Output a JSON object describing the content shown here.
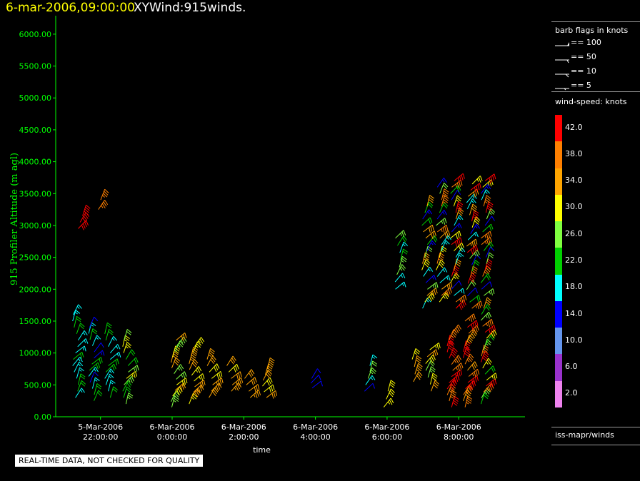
{
  "title": {
    "date": "6-mar-2006,09:00:00",
    "main": "XYWind:915winds."
  },
  "colors": {
    "axis": "#00ff00",
    "ylabel": "#00ff00",
    "text": "#ffffff"
  },
  "notice": "REAL-TIME DATA, NOT CHECKED FOR QUALITY",
  "legend": {
    "barb_title": "barb flags in knots",
    "barbs": [
      "== 100",
      "== 50",
      "== 10",
      "== 5"
    ],
    "speed_title": "wind-speed: knots",
    "scale": [
      {
        "label": "42.0",
        "color": "#ff0000"
      },
      {
        "label": "38.0",
        "color": "#ff7f00"
      },
      {
        "label": "34.0",
        "color": "#ffa500"
      },
      {
        "label": "30.0",
        "color": "#ffff00"
      },
      {
        "label": "26.0",
        "color": "#80ff40"
      },
      {
        "label": "22.0",
        "color": "#00d000"
      },
      {
        "label": "18.0",
        "color": "#00ffff"
      },
      {
        "label": "14.0",
        "color": "#0000ff"
      },
      {
        "label": "10.0",
        "color": "#6495ed"
      },
      {
        "label": "6.0",
        "color": "#9a32cd"
      },
      {
        "label": "2.0",
        "color": "#ee82ee"
      }
    ],
    "footer": "iss-mapr/winds"
  },
  "chart_data": {
    "type": "scatter",
    "title": "XYWind:915winds.",
    "xlabel": "time",
    "ylabel": "915 Profiler Altitude (m agl)",
    "ylim": [
      0,
      6200
    ],
    "yticks": [
      "0.00",
      "500.00",
      "1000.00",
      "1500.00",
      "2000.00",
      "2500.00",
      "3000.00",
      "3500.00",
      "4000.00",
      "4500.00",
      "5000.00",
      "5500.00",
      "6000.00"
    ],
    "x_hours_range": [
      20.75,
      33.85
    ],
    "xticks": [
      {
        "hour": 22,
        "line1": "5-Mar-2006",
        "line2": "22:00:00"
      },
      {
        "hour": 24,
        "line1": "6-Mar-2006",
        "line2": "0:00:00"
      },
      {
        "hour": 26,
        "line1": "6-Mar-2006",
        "line2": "2:00:00"
      },
      {
        "hour": 28,
        "line1": "6-Mar-2006",
        "line2": "4:00:00"
      },
      {
        "hour": 30,
        "line1": "6-Mar-2006",
        "line2": "6:00:00"
      },
      {
        "hour": 32,
        "line1": "6-Mar-2006",
        "line2": "8:00:00"
      }
    ],
    "profiles": [
      {
        "time": "5-Mar-2006 21:30",
        "hour": 21.3,
        "alt": [
          300,
          1600
        ],
        "speed": [
          16,
          22
        ],
        "count": 14
      },
      {
        "time": "5-Mar-2006 21:45",
        "hour": 21.75,
        "alt": [
          250,
          1400
        ],
        "speed": [
          14,
          22
        ],
        "count": 13
      },
      {
        "time": "5-Mar-2006 22:15",
        "hour": 22.2,
        "alt": [
          300,
          1300
        ],
        "speed": [
          17,
          24
        ],
        "count": 11
      },
      {
        "time": "5-Mar-2006 22:45",
        "hour": 22.7,
        "alt": [
          200,
          1200
        ],
        "speed": [
          22,
          29
        ],
        "count": 11
      },
      {
        "time": "6-Mar-2006 0:00",
        "hour": 24.05,
        "alt": [
          150,
          1200
        ],
        "speed": [
          26,
          34
        ],
        "count": 13
      },
      {
        "time": "6-Mar-2006 0:30",
        "hour": 24.55,
        "alt": [
          200,
          1100
        ],
        "speed": [
          28,
          36
        ],
        "count": 11
      },
      {
        "time": "6-Mar-2006 1:00",
        "hour": 25.05,
        "alt": [
          300,
          900
        ],
        "speed": [
          30,
          36
        ],
        "count": 7
      },
      {
        "time": "6-Mar-2006 1:30",
        "hour": 25.6,
        "alt": [
          400,
          800
        ],
        "speed": [
          31,
          36
        ],
        "count": 5
      },
      {
        "time": "6-Mar-2006 2:00",
        "hour": 26.1,
        "alt": [
          300,
          600
        ],
        "speed": [
          32,
          36
        ],
        "count": 4
      },
      {
        "time": "6-Mar-2006 2:30",
        "hour": 26.6,
        "alt": [
          300,
          750
        ],
        "speed": [
          31,
          36
        ],
        "count": 6
      },
      {
        "time": "6-Mar-2006 3:50",
        "hour": 27.95,
        "alt": [
          450,
          600
        ],
        "speed": [
          13,
          15
        ],
        "count": 3
      },
      {
        "time": "6-Mar-2006 5:20",
        "hour": 29.45,
        "alt": [
          400,
          800
        ],
        "speed": [
          14,
          26
        ],
        "count": 5
      },
      {
        "time": "6-Mar-2006 5:50",
        "hour": 29.95,
        "alt": [
          150,
          400
        ],
        "speed": [
          28,
          31
        ],
        "count": 3
      },
      {
        "time": "6-Mar-2006 6:40",
        "hour": 30.7,
        "alt": [
          550,
          900
        ],
        "speed": [
          28,
          36
        ],
        "count": 4
      },
      {
        "time": "6-Mar-2006 7:10",
        "hour": 31.15,
        "alt": [
          400,
          1050
        ],
        "speed": [
          24,
          34
        ],
        "count": 7
      },
      {
        "time": "6-Mar-2006 7:45",
        "hour": 31.75,
        "alt": [
          150,
          1300
        ],
        "speed": [
          38,
          44
        ],
        "count": 13
      },
      {
        "time": "6-Mar-2006 8:10",
        "hour": 32.2,
        "alt": [
          150,
          1500
        ],
        "speed": [
          34,
          42
        ],
        "count": 15
      },
      {
        "time": "6-Mar-2006 8:40",
        "hour": 32.7,
        "alt": [
          200,
          1700
        ],
        "speed": [
          21,
          42
        ],
        "count": 17
      },
      {
        "time": "6-Mar-2006 7:10u",
        "hour": 31.05,
        "alt": [
          1700,
          3300
        ],
        "speed": [
          15,
          36
        ],
        "count": 17
      },
      {
        "time": "6-Mar-2006 7:35u",
        "hour": 31.45,
        "alt": [
          1800,
          3600
        ],
        "speed": [
          15,
          40
        ],
        "count": 19
      },
      {
        "time": "6-Mar-2006 8:00u",
        "hour": 31.85,
        "alt": [
          1700,
          3700
        ],
        "speed": [
          14,
          42
        ],
        "count": 21
      },
      {
        "time": "6-Mar-2006 8:20u",
        "hour": 32.3,
        "alt": [
          1700,
          3650
        ],
        "speed": [
          14,
          42
        ],
        "count": 21
      },
      {
        "time": "6-Mar-2006 8:45u",
        "hour": 32.7,
        "alt": [
          1900,
          3700
        ],
        "speed": [
          14,
          42
        ],
        "count": 19
      },
      {
        "time": "6-Mar-2006 6:30u",
        "hour": 30.3,
        "alt": [
          2000,
          2800
        ],
        "speed": [
          18,
          28
        ],
        "count": 8
      },
      {
        "time": "5-Mar-2006 20:40",
        "hour": 21.45,
        "alt": [
          2950,
          3150
        ],
        "speed": [
          42,
          44
        ],
        "count": 3
      },
      {
        "time": "5-Mar-2006 21:50",
        "hour": 21.95,
        "alt": [
          3250,
          3400
        ],
        "speed": [
          36,
          40
        ],
        "count": 2
      }
    ]
  }
}
